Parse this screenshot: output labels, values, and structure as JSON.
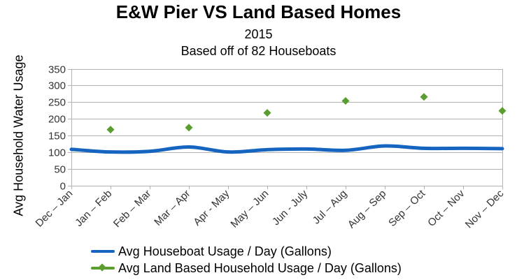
{
  "chart_data": {
    "type": "line",
    "title": "E&W Pier VS Land Based Homes",
    "subtitle_lines": [
      "2015",
      "Based off of 82 Houseboats"
    ],
    "xlabel": "",
    "ylabel": "Avg Household Water Usage",
    "ylim": [
      0,
      350
    ],
    "yticks": [
      0,
      50,
      100,
      150,
      200,
      250,
      300,
      350
    ],
    "grid": true,
    "legend_position": "bottom",
    "categories": [
      "Dec – Jan",
      "Jan – Feb",
      "Feb – Mar",
      "Mar – Apr",
      "Apr - May",
      "May – Jun",
      "Jun - July",
      "Jul – Aug",
      "Aug – Sep",
      "Sep – Oct",
      "Oct – Nov",
      "Nov – Dec"
    ],
    "series": [
      {
        "name": "Avg Houseboat Usage / Day (Gallons)",
        "style": "smooth-line",
        "color": "#1565c0",
        "values": [
          109,
          101,
          103,
          116,
          101,
          108,
          110,
          106,
          119,
          112,
          112,
          111
        ]
      },
      {
        "name": "Avg Land Based Household Usage / Day (Gallons)",
        "style": "markers-diamond",
        "color": "#5a9e2f",
        "values": [
          null,
          168,
          null,
          174,
          null,
          218,
          null,
          254,
          null,
          266,
          null,
          224
        ]
      }
    ]
  }
}
